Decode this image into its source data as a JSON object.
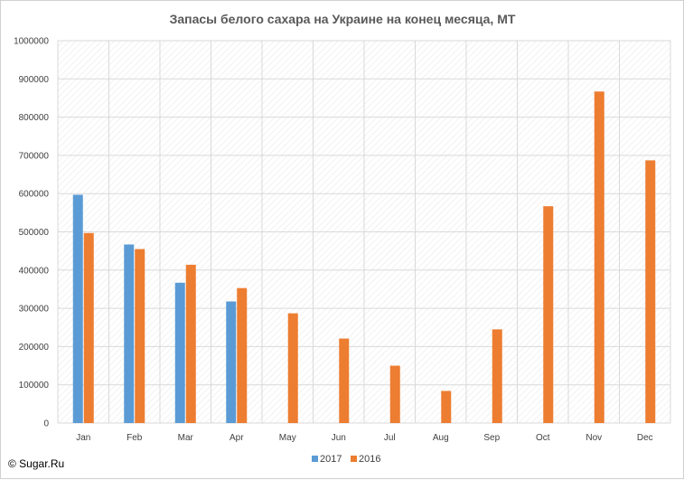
{
  "chart_data": {
    "type": "bar",
    "title": "Запасы белого сахара на Украине на конец месяца, МТ",
    "categories": [
      "Jan",
      "Feb",
      "Mar",
      "Apr",
      "May",
      "Jun",
      "Jul",
      "Aug",
      "Sep",
      "Oct",
      "Nov",
      "Dec"
    ],
    "series": [
      {
        "name": "2017",
        "color": "#5B9BD5",
        "values": [
          597000,
          467000,
          367000,
          318000,
          null,
          null,
          null,
          null,
          null,
          null,
          null,
          null
        ]
      },
      {
        "name": "2016",
        "color": "#ED7D31",
        "values": [
          497000,
          455000,
          414000,
          353000,
          287000,
          221000,
          150000,
          84000,
          245000,
          567000,
          867000,
          687000
        ]
      }
    ],
    "ylim": [
      0,
      1000000
    ],
    "y_ticks": [
      "0",
      "100000",
      "200000",
      "300000",
      "400000",
      "500000",
      "600000",
      "700000",
      "800000",
      "900000",
      "1000000"
    ],
    "grid": true,
    "legend_position": "bottom",
    "xlabel": "",
    "ylabel": ""
  },
  "footer": {
    "copyright": "© Sugar.Ru"
  }
}
